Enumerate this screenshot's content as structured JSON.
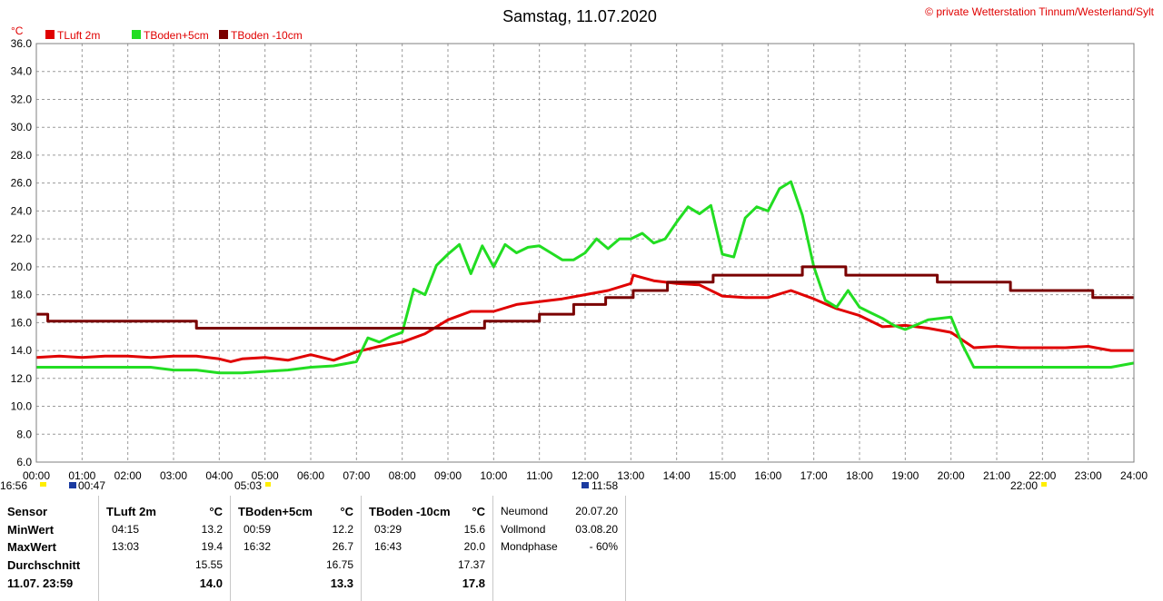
{
  "title": "Samstag, 11.07.2020",
  "copyright": "© private Wetterstation Tinnum/Westerland/Sylt",
  "unit_label": "°C",
  "colors": {
    "tluft": "#e00000",
    "tboden5": "#22dd22",
    "tboden10": "#7a0000",
    "grid": "#9a9a9a",
    "sun": "#ffee00"
  },
  "legend": [
    {
      "label": "TLuft 2m",
      "color": "#e00000"
    },
    {
      "label": "TBoden+5cm",
      "color": "#22dd22"
    },
    {
      "label": "TBoden -10cm",
      "color": "#7a0000"
    }
  ],
  "astro_labels": {
    "sunset_prev": "16:56",
    "moonrise": "00:47",
    "sunrise": "05:03",
    "moonset": "11:58",
    "sunset": "22:00"
  },
  "chart_data": {
    "type": "line",
    "title": "Samstag, 11.07.2020",
    "ylabel": "°C",
    "ylim": [
      6,
      36
    ],
    "xlim": [
      0,
      24
    ],
    "grid": true,
    "legend_position": "top-left",
    "y_ticks": [
      "6.0",
      "8.0",
      "10.0",
      "12.0",
      "14.0",
      "16.0",
      "18.0",
      "20.0",
      "22.0",
      "24.0",
      "26.0",
      "28.0",
      "30.0",
      "32.0",
      "34.0",
      "36.0"
    ],
    "x_ticks": [
      "00:00",
      "01:00",
      "02:00",
      "03:00",
      "04:00",
      "05:00",
      "06:00",
      "07:00",
      "08:00",
      "09:00",
      "10:00",
      "11:00",
      "12:00",
      "13:00",
      "14:00",
      "15:00",
      "16:00",
      "17:00",
      "18:00",
      "19:00",
      "20:00",
      "21:00",
      "22:00",
      "23:00",
      "24:00"
    ],
    "series": [
      {
        "name": "TLuft 2m",
        "color": "#e00000",
        "x": [
          0,
          0.5,
          1,
          1.5,
          2,
          2.5,
          3,
          3.5,
          4,
          4.25,
          4.5,
          5,
          5.5,
          6,
          6.5,
          7,
          7.5,
          8,
          8.5,
          9,
          9.5,
          10,
          10.5,
          11,
          11.5,
          12,
          12.5,
          13,
          13.05,
          13.5,
          14,
          14.5,
          15,
          15.5,
          16,
          16.5,
          17,
          17.5,
          18,
          18.5,
          19,
          19.5,
          20,
          20.5,
          21,
          21.5,
          22,
          22.5,
          23,
          23.5,
          24
        ],
        "y": [
          13.5,
          13.6,
          13.5,
          13.6,
          13.6,
          13.5,
          13.6,
          13.6,
          13.4,
          13.2,
          13.4,
          13.5,
          13.3,
          13.7,
          13.3,
          13.9,
          14.3,
          14.6,
          15.2,
          16.2,
          16.8,
          16.8,
          17.3,
          17.5,
          17.7,
          18.0,
          18.3,
          18.8,
          19.4,
          19.0,
          18.8,
          18.7,
          17.9,
          17.8,
          17.8,
          18.3,
          17.7,
          17.0,
          16.5,
          15.7,
          15.8,
          15.6,
          15.3,
          14.2,
          14.3,
          14.2,
          14.2,
          14.2,
          14.3,
          14.0,
          14.0
        ]
      },
      {
        "name": "TBoden+5cm",
        "color": "#22dd22",
        "x": [
          0,
          0.5,
          1,
          1.5,
          2,
          2.5,
          3,
          3.5,
          4,
          4.5,
          5,
          5.5,
          6,
          6.5,
          7,
          7.25,
          7.5,
          7.75,
          8,
          8.25,
          8.5,
          8.75,
          9,
          9.25,
          9.5,
          9.75,
          10,
          10.25,
          10.5,
          10.75,
          11,
          11.25,
          11.5,
          11.75,
          12,
          12.25,
          12.5,
          12.75,
          13,
          13.25,
          13.5,
          13.75,
          14,
          14.25,
          14.5,
          14.75,
          15,
          15.25,
          15.5,
          15.75,
          16,
          16.25,
          16.5,
          16.75,
          17,
          17.25,
          17.5,
          17.75,
          18,
          18.25,
          18.5,
          18.75,
          19,
          19.5,
          20,
          20.25,
          20.5,
          21,
          21.5,
          22,
          22.5,
          23,
          23.5,
          24
        ],
        "y": [
          12.8,
          12.8,
          12.8,
          12.8,
          12.8,
          12.8,
          12.6,
          12.6,
          12.4,
          12.4,
          12.5,
          12.6,
          12.8,
          12.9,
          13.2,
          14.9,
          14.6,
          15.0,
          15.3,
          18.4,
          18.0,
          20.1,
          20.9,
          21.6,
          19.5,
          21.5,
          20.0,
          21.6,
          21.0,
          21.4,
          21.5,
          21.0,
          20.5,
          20.5,
          21.0,
          22.0,
          21.3,
          22.0,
          22.0,
          22.4,
          21.7,
          22.0,
          23.2,
          24.3,
          23.8,
          24.4,
          20.9,
          20.7,
          23.5,
          24.3,
          24.0,
          25.6,
          26.1,
          23.7,
          20.0,
          17.6,
          17.1,
          18.3,
          17.1,
          16.7,
          16.3,
          15.8,
          15.5,
          16.2,
          16.4,
          14.4,
          12.8,
          12.8,
          12.8,
          12.8,
          12.8,
          12.8,
          12.8,
          13.1
        ]
      },
      {
        "name": "TBoden -10cm",
        "color": "#7a0000",
        "x": [
          0,
          0.25,
          0.25,
          3.5,
          3.5,
          7.0,
          7.0,
          9.8,
          9.8,
          11.0,
          11.0,
          11.75,
          11.75,
          12.45,
          12.45,
          13.05,
          13.05,
          13.8,
          13.8,
          14.8,
          14.8,
          16.75,
          16.75,
          17.7,
          17.7,
          19.7,
          19.7,
          21.3,
          21.3,
          23.1,
          23.1,
          24
        ],
        "y": [
          16.6,
          16.6,
          16.1,
          16.1,
          15.6,
          15.6,
          15.6,
          15.6,
          16.1,
          16.1,
          16.6,
          16.6,
          17.3,
          17.3,
          17.8,
          17.8,
          18.3,
          18.3,
          18.9,
          18.9,
          19.4,
          19.4,
          20.0,
          20.0,
          19.4,
          19.4,
          18.9,
          18.9,
          18.3,
          18.3,
          17.8,
          17.8
        ]
      }
    ]
  },
  "stats": {
    "sensor": {
      "header": "Sensor",
      "rows": [
        "MinWert",
        "MaxWert",
        "Durchschnitt",
        "11.07. 23:59"
      ]
    },
    "tluft": {
      "header": "TLuft 2m",
      "unit": "°C",
      "min_time": "04:15",
      "min_val": "13.2",
      "max_time": "13:03",
      "max_val": "19.4",
      "avg": "15.55",
      "last": "14.0"
    },
    "tboden5": {
      "header": "TBoden+5cm",
      "unit": "°C",
      "min_time": "00:59",
      "min_val": "12.2",
      "max_time": "16:32",
      "max_val": "26.7",
      "avg": "16.75",
      "last": "13.3"
    },
    "tboden10": {
      "header": "TBoden -10cm",
      "unit": "°C",
      "min_time": "03:29",
      "min_val": "15.6",
      "max_time": "16:43",
      "max_val": "20.0",
      "avg": "17.37",
      "last": "17.8"
    },
    "moon": {
      "row1_label": "Neumond",
      "row1_val": "20.07.20",
      "row2_label": "Vollmond",
      "row2_val": "03.08.20",
      "row3_label": "Mondphase",
      "row3_val": "- 60%"
    }
  }
}
